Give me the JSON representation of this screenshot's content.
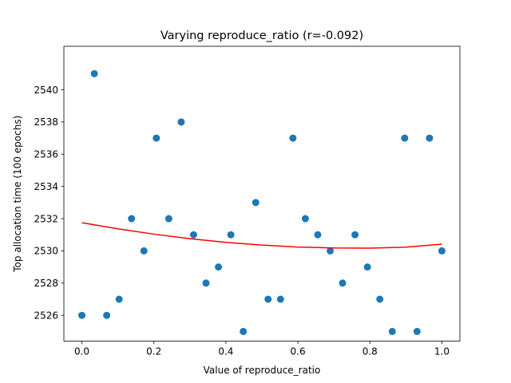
{
  "chart_data": {
    "type": "scatter",
    "title": "Varying reproduce_ratio (r=-0.092)",
    "xlabel": "Value of reproduce_ratio",
    "ylabel": "Top allocation time (100 epochs)",
    "xlim": [
      -0.05,
      1.05
    ],
    "ylim": [
      2524.4,
      2542.7
    ],
    "xticks": [
      0.0,
      0.2,
      0.4,
      0.6,
      0.8,
      1.0
    ],
    "xtick_labels": [
      "0.0",
      "0.2",
      "0.4",
      "0.6",
      "0.8",
      "1.0"
    ],
    "yticks": [
      2526,
      2528,
      2530,
      2532,
      2534,
      2536,
      2538,
      2540
    ],
    "ytick_labels": [
      "2526",
      "2528",
      "2530",
      "2532",
      "2534",
      "2536",
      "2538",
      "2540"
    ],
    "grid": false,
    "legend": "none",
    "series": [
      {
        "type": "scatter",
        "color": "#1f77b4",
        "x": [
          0.0,
          0.0345,
          0.069,
          0.1034,
          0.1379,
          0.1724,
          0.2069,
          0.2414,
          0.2759,
          0.3103,
          0.3448,
          0.3793,
          0.4138,
          0.4483,
          0.4828,
          0.5172,
          0.5517,
          0.5862,
          0.6207,
          0.6552,
          0.6897,
          0.7241,
          0.7586,
          0.7931,
          0.8276,
          0.8621,
          0.8966,
          0.931,
          0.9655,
          1.0
        ],
        "y": [
          2526,
          2541,
          2526,
          2527,
          2532,
          2530,
          2537,
          2532,
          2538,
          2531,
          2528,
          2529,
          2531,
          2525,
          2533,
          2527,
          2527,
          2537,
          2532,
          2531,
          2530,
          2528,
          2531,
          2529,
          2527,
          2525,
          2537,
          2525,
          2537,
          2530
        ]
      },
      {
        "type": "line",
        "color": "#ff0000",
        "x": [
          0.0,
          0.1,
          0.2,
          0.3,
          0.4,
          0.5,
          0.6,
          0.7,
          0.8,
          0.9,
          1.0
        ],
        "y": [
          2531.75,
          2531.37,
          2531.04,
          2530.76,
          2530.53,
          2530.36,
          2530.24,
          2530.18,
          2530.17,
          2530.23,
          2530.42
        ]
      }
    ]
  }
}
